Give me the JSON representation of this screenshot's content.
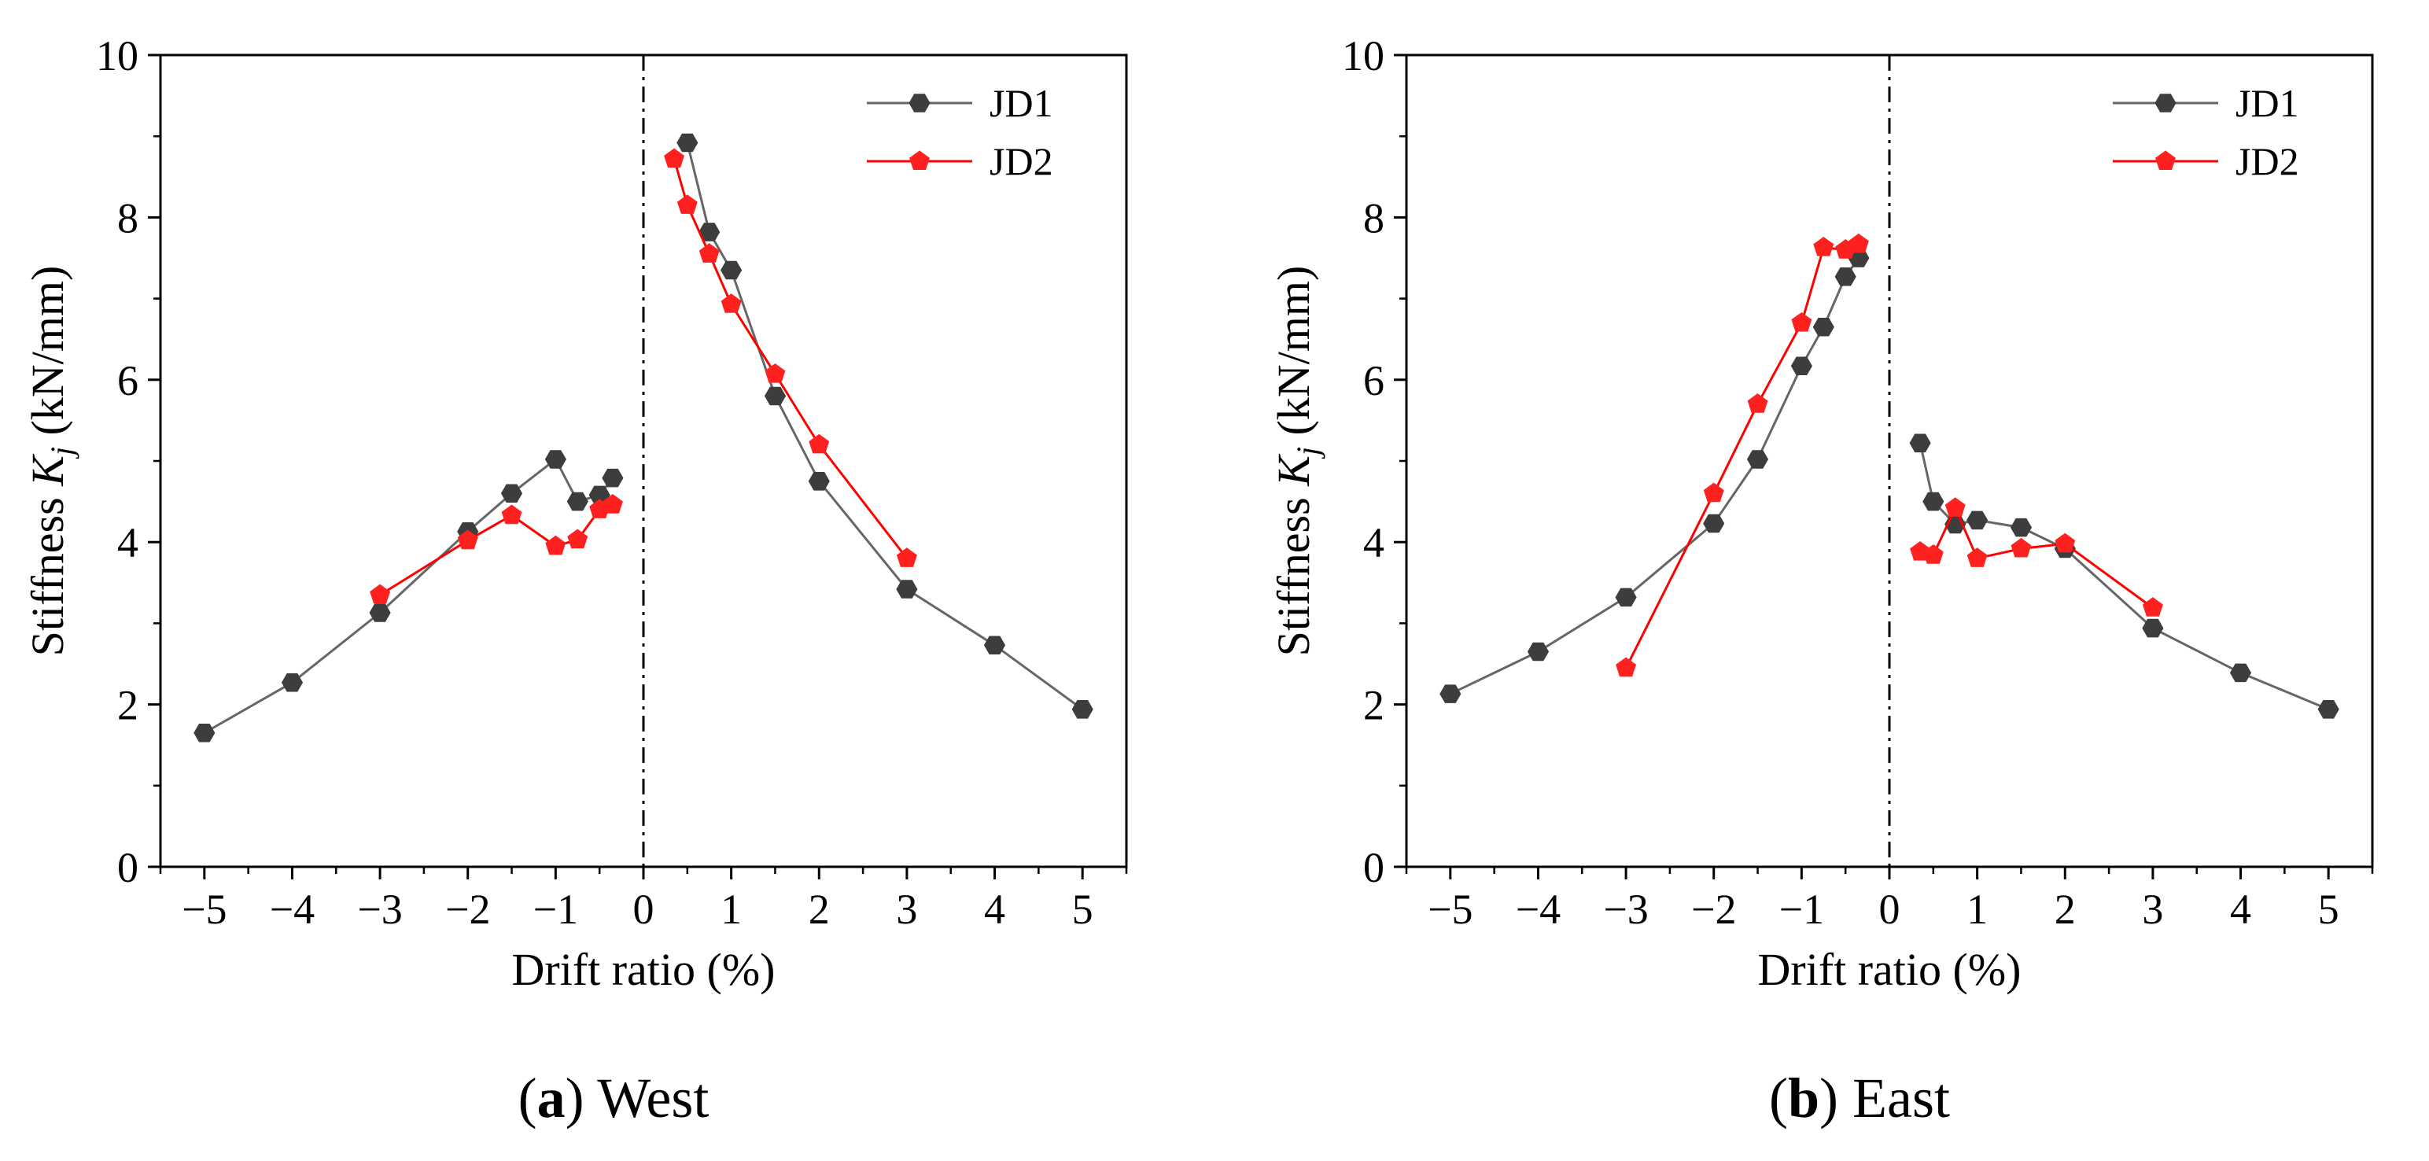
{
  "chart_data": [
    {
      "type": "line",
      "caption_letter": "a",
      "caption_text": "West",
      "xlabel": "Drift ratio (%)",
      "ylabel_prefix": "Stiffness ",
      "ylabel_symbol": "K",
      "ylabel_subscript": "j",
      "ylabel_suffix": " (kN/mm)",
      "xlim": [
        -5.5,
        5.5
      ],
      "ylim": [
        0,
        10
      ],
      "xticks": [
        -5,
        -4,
        -3,
        -2,
        -1,
        0,
        1,
        2,
        3,
        4,
        5
      ],
      "xtick_labels": [
        "−5",
        "−4",
        "−3",
        "−2",
        "−1",
        "0",
        "1",
        "2",
        "3",
        "4",
        "5"
      ],
      "yticks": [
        0,
        2,
        4,
        6,
        8,
        10
      ],
      "ytick_labels": [
        "0",
        "2",
        "4",
        "6",
        "8",
        "10"
      ],
      "zero_line": true,
      "legend_position": "top-right",
      "series": [
        {
          "name": "JD1",
          "color": "#666666",
          "marker_color": "#3d3d3d",
          "marker": "hexagon",
          "segments": [
            {
              "x": [
                -5,
                -4,
                -3,
                -2,
                -1.5,
                -1,
                -0.75,
                -0.5,
                -0.35
              ],
              "y": [
                1.65,
                2.27,
                3.13,
                4.13,
                4.6,
                5.02,
                4.5,
                4.58,
                4.79
              ]
            },
            {
              "x": [
                0.5,
                0.75,
                1,
                1.5,
                2,
                3,
                4,
                5
              ],
              "y": [
                8.92,
                7.82,
                7.35,
                5.8,
                4.75,
                3.42,
                2.73,
                1.94
              ]
            }
          ]
        },
        {
          "name": "JD2",
          "color": "#ff0000",
          "marker_color": "#ff2020",
          "marker": "pentagon",
          "segments": [
            {
              "x": [
                -3,
                -2,
                -1.5,
                -1,
                -0.75,
                -0.5,
                -0.35
              ],
              "y": [
                3.35,
                4.02,
                4.33,
                3.95,
                4.03,
                4.4,
                4.46
              ]
            },
            {
              "x": [
                0.35,
                0.5,
                0.75,
                1,
                1.5,
                2,
                3
              ],
              "y": [
                8.72,
                8.15,
                7.55,
                6.93,
                6.07,
                5.2,
                3.8
              ]
            }
          ]
        }
      ]
    },
    {
      "type": "line",
      "caption_letter": "b",
      "caption_text": "East",
      "xlabel": "Drift ratio (%)",
      "ylabel_prefix": "Stiffness ",
      "ylabel_symbol": "K",
      "ylabel_subscript": "j",
      "ylabel_suffix": " (kN/mm)",
      "xlim": [
        -5.5,
        5.5
      ],
      "ylim": [
        0,
        10
      ],
      "xticks": [
        -5,
        -4,
        -3,
        -2,
        -1,
        0,
        1,
        2,
        3,
        4,
        5
      ],
      "xtick_labels": [
        "−5",
        "−4",
        "−3",
        "−2",
        "−1",
        "0",
        "1",
        "2",
        "3",
        "4",
        "5"
      ],
      "yticks": [
        0,
        2,
        4,
        6,
        8,
        10
      ],
      "ytick_labels": [
        "0",
        "2",
        "4",
        "6",
        "8",
        "10"
      ],
      "zero_line": true,
      "legend_position": "top-right",
      "series": [
        {
          "name": "JD1",
          "color": "#666666",
          "marker_color": "#3d3d3d",
          "marker": "hexagon",
          "segments": [
            {
              "x": [
                -5,
                -4,
                -3,
                -2,
                -1.5,
                -1,
                -0.75,
                -0.5,
                -0.35
              ],
              "y": [
                2.13,
                2.65,
                3.32,
                4.23,
                5.02,
                6.17,
                6.65,
                7.27,
                7.5
              ]
            },
            {
              "x": [
                0.35,
                0.5,
                0.75,
                1,
                1.5,
                2,
                3,
                4,
                5
              ],
              "y": [
                5.22,
                4.5,
                4.22,
                4.27,
                4.18,
                3.92,
                2.94,
                2.39,
                1.94
              ]
            }
          ]
        },
        {
          "name": "JD2",
          "color": "#ff0000",
          "marker_color": "#ff2020",
          "marker": "pentagon",
          "segments": [
            {
              "x": [
                -3,
                -2,
                -1.5,
                -1,
                -0.75,
                -0.5,
                -0.35
              ],
              "y": [
                2.45,
                4.6,
                5.7,
                6.7,
                7.63,
                7.6,
                7.67
              ]
            },
            {
              "x": [
                0.35,
                0.5,
                0.75,
                1,
                1.5,
                2,
                3
              ],
              "y": [
                3.88,
                3.84,
                4.42,
                3.8,
                3.92,
                3.98,
                3.19
              ]
            }
          ]
        }
      ]
    }
  ]
}
